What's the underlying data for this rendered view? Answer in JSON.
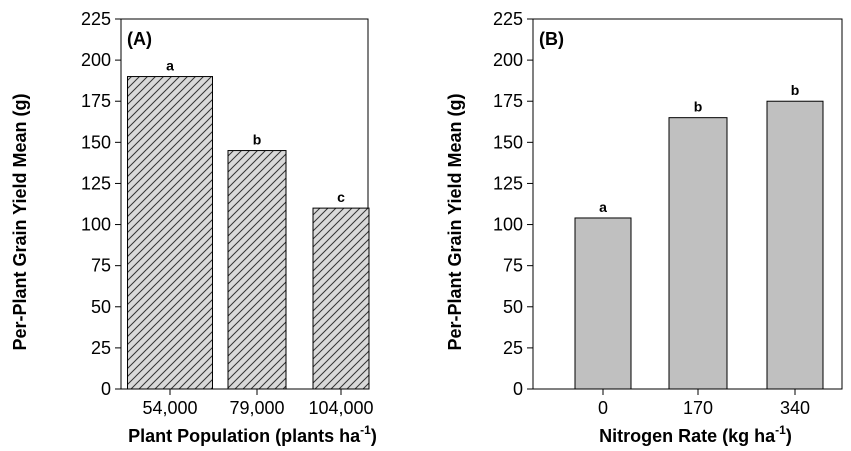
{
  "chart_data": [
    {
      "type": "bar",
      "panel_label": "(A)",
      "categories": [
        "54,000",
        "79,000",
        "104,000"
      ],
      "values": [
        190,
        145,
        110
      ],
      "bar_labels": [
        "a",
        "b",
        "c"
      ],
      "bar_fill": "hatched",
      "xlabel": "Plant Population (plants ha",
      "xlabel_sup": "-1",
      "xlabel_end": ")",
      "ylabel": "Per-Plant Grain Yield Mean (g)",
      "ylim": [
        0,
        225
      ],
      "yticks": [
        0,
        25,
        50,
        75,
        100,
        125,
        150,
        175,
        200,
        225
      ],
      "grid": false
    },
    {
      "type": "bar",
      "panel_label": "(B)",
      "categories": [
        "0",
        "170",
        "340"
      ],
      "values": [
        104,
        165,
        175
      ],
      "bar_labels": [
        "a",
        "b",
        "b"
      ],
      "bar_fill": "#c0c0c0",
      "xlabel": "Nitrogen Rate (kg ha",
      "xlabel_sup": "-1",
      "xlabel_end": ")",
      "ylabel": "Per-Plant Grain Yield Mean (g)",
      "ylim": [
        0,
        225
      ],
      "yticks": [
        0,
        25,
        50,
        75,
        100,
        125,
        150,
        175,
        200,
        225
      ],
      "grid": false
    }
  ]
}
